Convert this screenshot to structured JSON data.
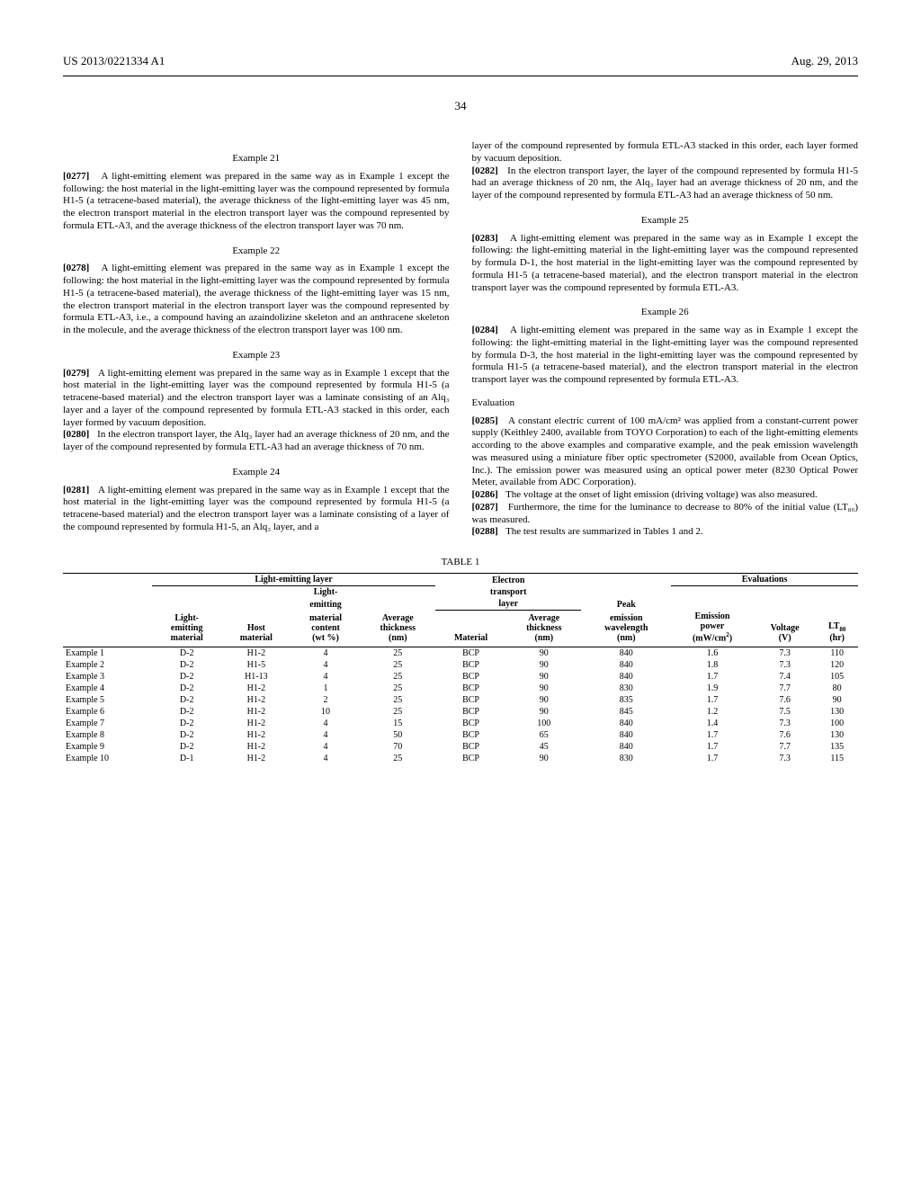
{
  "header": {
    "left": "US 2013/0221334 A1",
    "right": "Aug. 29, 2013"
  },
  "page_number": "34",
  "left_column": {
    "ex21_title": "Example 21",
    "p0277_num": "[0277]",
    "p0277_text": "A light-emitting element was prepared in the same way as in Example 1 except the following: the host material in the light-emitting layer was the compound represented by formula H1-5 (a tetracene-based material), the average thickness of the light-emitting layer was 45 nm, the electron transport material in the electron transport layer was the compound represented by formula ETL-A3, and the average thickness of the electron transport layer was 70 nm.",
    "ex22_title": "Example 22",
    "p0278_num": "[0278]",
    "p0278_text": "A light-emitting element was prepared in the same way as in Example 1 except the following: the host material in the light-emitting layer was the compound represented by formula H1-5 (a tetracene-based material), the average thickness of the light-emitting layer was 15 nm, the electron transport material in the electron transport layer was the compound represented by formula ETL-A3, i.e., a compound having an azaindolizine skeleton and an anthracene skeleton in the molecule, and the average thickness of the electron transport layer was 100 nm.",
    "ex23_title": "Example 23",
    "p0279_num": "[0279]",
    "p0279_text": "A light-emitting element was prepared in the same way as in Example 1 except that the host material in the light-emitting layer was the compound represented by formula H1-5 (a tetracene-based material) and the electron transport layer was a laminate consisting of an Alq₃ layer and a layer of the compound represented by formula ETL-A3 stacked in this order, each layer formed by vacuum deposition.",
    "p0280_num": "[0280]",
    "p0280_text": "In the electron transport layer, the Alq₃ layer had an average thickness of 20 nm, and the layer of the compound represented by formula ETL-A3 had an average thickness of 70 nm.",
    "ex24_title": "Example 24",
    "p0281_num": "[0281]",
    "p0281_text": "A light-emitting element was prepared in the same way as in Example 1 except that the host material in the light-emitting layer was the compound represented by formula H1-5 (a tetracene-based material) and the electron transport layer was a laminate consisting of a layer of the compound represented by formula H1-5, an Alq₃ layer, and a"
  },
  "right_column": {
    "p_cont": "layer of the compound represented by formula ETL-A3 stacked in this order, each layer formed by vacuum deposition.",
    "p0282_num": "[0282]",
    "p0282_text": "In the electron transport layer, the layer of the compound represented by formula H1-5 had an average thickness of 20 nm, the Alq₃ layer had an average thickness of 20 nm, and the layer of the compound represented by formula ETL-A3 had an average thickness of 50 nm.",
    "ex25_title": "Example 25",
    "p0283_num": "[0283]",
    "p0283_text": "A light-emitting element was prepared in the same way as in Example 1 except the following: the light-emitting material in the light-emitting layer was the compound represented by formula D-1, the host material in the light-emitting layer was the compound represented by formula H1-5 (a tetracene-based material), and the electron transport material in the electron transport layer was the compound represented by formula ETL-A3.",
    "ex26_title": "Example 26",
    "p0284_num": "[0284]",
    "p0284_text": "A light-emitting element was prepared in the same way as in Example 1 except the following: the light-emitting material in the light-emitting layer was the compound represented by formula D-3, the host material in the light-emitting layer was the compound represented by formula H1-5 (a tetracene-based material), and the electron transport material in the electron transport layer was the compound represented by formula ETL-A3.",
    "eval_title": "Evaluation",
    "p0285_num": "[0285]",
    "p0285_text": "A constant electric current of 100 mA/cm² was applied from a constant-current power supply (Keithley 2400, available from TOYO Corporation) to each of the light-emitting elements according to the above examples and comparative example, and the peak emission wavelength was measured using a miniature fiber optic spectrometer (S2000, available from Ocean Optics, Inc.). The emission power was measured using an optical power meter (8230 Optical Power Meter, available from ADC Corporation).",
    "p0286_num": "[0286]",
    "p0286_text": "The voltage at the onset of light emission (driving voltage) was also measured.",
    "p0287_num": "[0287]",
    "p0287_text": "Furthermore, the time for the luminance to decrease to 80% of the initial value (LT₈₀) was measured.",
    "p0288_num": "[0288]",
    "p0288_text": "The test results are summarized in Tables 1 and 2."
  },
  "table": {
    "label": "TABLE 1",
    "group_headers": {
      "lel": "Light-emitting layer",
      "etl": "Electron",
      "etl2": "transport",
      "etl3": "layer",
      "eval": "Evaluations",
      "light_emitting": "Light-",
      "light_emitting2": "emitting",
      "peak": "Peak"
    },
    "columns": [
      "",
      "Light-\nemitting\nmaterial",
      "Host\nmaterial",
      "material\ncontent\n(wt %)",
      "Average\nthickness\n(nm)",
      "Material",
      "Average\nthickness\n(nm)",
      "emission\nwavelength\n(nm)",
      "Emission\npower\n(mW/cm²)",
      "Voltage\n(V)",
      "LT₈₀\n(hr)"
    ],
    "rows": [
      [
        "Example 1",
        "D-2",
        "H1-2",
        "4",
        "25",
        "BCP",
        "90",
        "840",
        "1.6",
        "7.3",
        "110"
      ],
      [
        "Example 2",
        "D-2",
        "H1-5",
        "4",
        "25",
        "BCP",
        "90",
        "840",
        "1.8",
        "7.3",
        "120"
      ],
      [
        "Example 3",
        "D-2",
        "H1-13",
        "4",
        "25",
        "BCP",
        "90",
        "840",
        "1.7",
        "7.4",
        "105"
      ],
      [
        "Example 4",
        "D-2",
        "H1-2",
        "1",
        "25",
        "BCP",
        "90",
        "830",
        "1.9",
        "7.7",
        "80"
      ],
      [
        "Example 5",
        "D-2",
        "H1-2",
        "2",
        "25",
        "BCP",
        "90",
        "835",
        "1.7",
        "7.6",
        "90"
      ],
      [
        "Example 6",
        "D-2",
        "H1-2",
        "10",
        "25",
        "BCP",
        "90",
        "845",
        "1.2",
        "7.5",
        "130"
      ],
      [
        "Example 7",
        "D-2",
        "H1-2",
        "4",
        "15",
        "BCP",
        "100",
        "840",
        "1.4",
        "7.3",
        "100"
      ],
      [
        "Example 8",
        "D-2",
        "H1-2",
        "4",
        "50",
        "BCP",
        "65",
        "840",
        "1.7",
        "7.6",
        "130"
      ],
      [
        "Example 9",
        "D-2",
        "H1-2",
        "4",
        "70",
        "BCP",
        "45",
        "840",
        "1.7",
        "7.7",
        "135"
      ],
      [
        "Example 10",
        "D-1",
        "H1-2",
        "4",
        "25",
        "BCP",
        "90",
        "830",
        "1.7",
        "7.3",
        "115"
      ]
    ]
  }
}
